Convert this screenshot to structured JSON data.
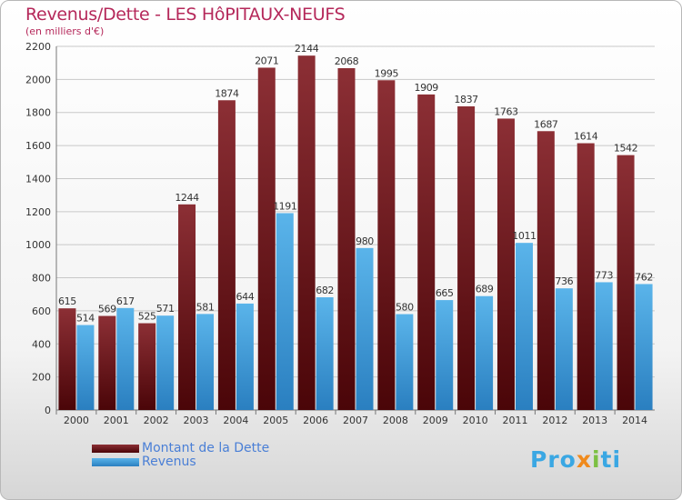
{
  "header": {
    "title": "Revenus/Dette - LES HôPITAUX-NEUFS",
    "subtitle": "(en milliers d'€)"
  },
  "legend": {
    "debt_label": "Montant de la Dette",
    "revenue_label": "Revenus"
  },
  "logo": {
    "text": "Proxiti",
    "parts": [
      "Pro",
      "x",
      "i",
      "ti"
    ]
  },
  "colors": {
    "debt_top": "#8c2f35",
    "debt_bottom": "#4a0508",
    "revenue_top": "#5ab4ea",
    "revenue_bottom": "#2a7fc0",
    "title": "#b5285a"
  },
  "chart_data": {
    "type": "bar",
    "title": "Revenus/Dette - LES HôPITAUX-NEUFS",
    "subtitle": "(en milliers d'€)",
    "xlabel": "",
    "ylabel": "",
    "ylim": [
      0,
      2200
    ],
    "yticks": [
      0,
      200,
      400,
      600,
      800,
      1000,
      1200,
      1400,
      1600,
      1800,
      2000,
      2200
    ],
    "grid": true,
    "legend_position": "bottom-left",
    "categories": [
      "2000",
      "2001",
      "2002",
      "2003",
      "2004",
      "2005",
      "2006",
      "2007",
      "2008",
      "2009",
      "2010",
      "2011",
      "2012",
      "2013",
      "2014"
    ],
    "series": [
      {
        "name": "Montant de la Dette",
        "values": [
          615,
          569,
          525,
          1244,
          1874,
          2071,
          2144,
          2068,
          1995,
          1909,
          1837,
          1763,
          1687,
          1614,
          1542
        ]
      },
      {
        "name": "Revenus",
        "values": [
          514,
          617,
          571,
          581,
          644,
          1191,
          682,
          980,
          580,
          665,
          689,
          1011,
          736,
          773,
          762
        ]
      }
    ]
  }
}
